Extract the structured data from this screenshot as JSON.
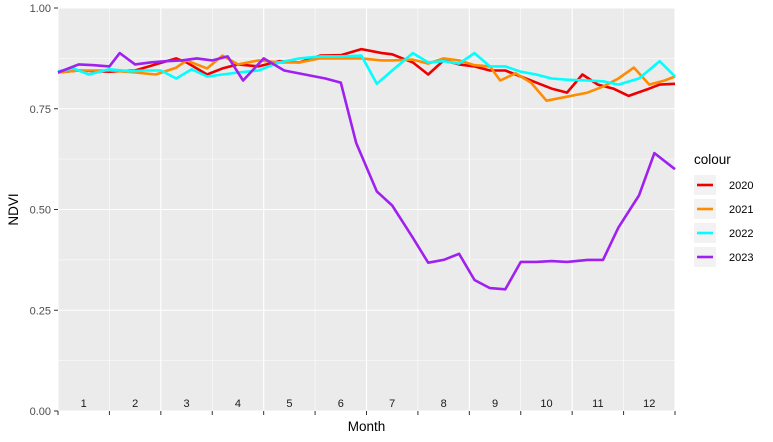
{
  "chart_data": {
    "type": "line",
    "xlabel": "Month",
    "ylabel": "NDVI",
    "ylim": [
      0,
      1
    ],
    "yticks": [
      {
        "value": 0,
        "label": "0.00"
      },
      {
        "value": 0.25,
        "label": "0.25"
      },
      {
        "value": 0.5,
        "label": "0.50"
      },
      {
        "value": 0.75,
        "label": "0.75"
      },
      {
        "value": 1,
        "label": "1.00"
      }
    ],
    "xlim": [
      0.5,
      12.5
    ],
    "month_labels": [
      "1",
      "2",
      "3",
      "4",
      "5",
      "6",
      "7",
      "8",
      "9",
      "10",
      "11",
      "12"
    ],
    "grid": true,
    "legend": {
      "title": "colour",
      "position": "right"
    },
    "series": [
      {
        "name": "2020",
        "color": "#ee0000",
        "x": [
          0.5,
          0.9,
          1.5,
          2.0,
          2.4,
          2.8,
          3.0,
          3.4,
          3.7,
          4.0,
          4.4,
          4.8,
          5.2,
          5.6,
          6.0,
          6.4,
          6.8,
          7.0,
          7.2,
          7.4,
          7.7,
          8.0,
          8.3,
          8.6,
          8.9,
          9.2,
          9.5,
          9.8,
          10.1,
          10.4,
          10.7,
          11.0,
          11.3,
          11.6,
          12.0,
          12.2,
          12.5
        ],
        "y": [
          0.84,
          0.845,
          0.842,
          0.845,
          0.86,
          0.875,
          0.865,
          0.835,
          0.85,
          0.86,
          0.855,
          0.868,
          0.865,
          0.882,
          0.883,
          0.898,
          0.888,
          0.885,
          0.875,
          0.865,
          0.835,
          0.87,
          0.86,
          0.855,
          0.845,
          0.845,
          0.83,
          0.815,
          0.8,
          0.79,
          0.835,
          0.81,
          0.8,
          0.782,
          0.8,
          0.81,
          0.812
        ]
      },
      {
        "name": "2021",
        "color": "#ff8c00",
        "x": [
          0.5,
          0.9,
          1.5,
          2.0,
          2.4,
          2.8,
          3.0,
          3.4,
          3.7,
          4.0,
          4.4,
          4.8,
          5.2,
          5.6,
          6.0,
          6.4,
          6.8,
          7.0,
          7.4,
          7.7,
          8.0,
          8.3,
          8.6,
          8.9,
          9.1,
          9.4,
          9.7,
          10.0,
          10.4,
          10.8,
          11.1,
          11.4,
          11.7,
          12.0,
          12.3,
          12.5
        ],
        "y": [
          0.84,
          0.845,
          0.845,
          0.84,
          0.835,
          0.852,
          0.87,
          0.85,
          0.882,
          0.86,
          0.87,
          0.865,
          0.865,
          0.875,
          0.875,
          0.875,
          0.87,
          0.87,
          0.872,
          0.862,
          0.875,
          0.87,
          0.858,
          0.855,
          0.82,
          0.838,
          0.815,
          0.77,
          0.78,
          0.79,
          0.805,
          0.825,
          0.852,
          0.81,
          0.82,
          0.83
        ]
      },
      {
        "name": "2022",
        "color": "#00ffff",
        "x": [
          0.5,
          0.8,
          1.1,
          1.5,
          1.9,
          2.2,
          2.5,
          2.8,
          3.1,
          3.4,
          3.7,
          4.0,
          4.4,
          4.8,
          5.2,
          5.6,
          6.0,
          6.4,
          6.7,
          7.0,
          7.4,
          7.7,
          8.0,
          8.3,
          8.6,
          8.9,
          9.2,
          9.5,
          9.8,
          10.1,
          10.4,
          10.8,
          11.1,
          11.4,
          11.8,
          12.2,
          12.5
        ],
        "y": [
          0.843,
          0.85,
          0.835,
          0.848,
          0.843,
          0.845,
          0.845,
          0.825,
          0.848,
          0.83,
          0.835,
          0.84,
          0.845,
          0.865,
          0.875,
          0.88,
          0.88,
          0.882,
          0.812,
          0.845,
          0.888,
          0.865,
          0.868,
          0.862,
          0.888,
          0.855,
          0.855,
          0.842,
          0.835,
          0.825,
          0.822,
          0.82,
          0.818,
          0.81,
          0.825,
          0.868,
          0.83
        ]
      },
      {
        "name": "2023",
        "color": "#a020f0",
        "x": [
          0.5,
          0.9,
          1.2,
          1.5,
          1.7,
          2.0,
          2.3,
          2.6,
          2.9,
          3.2,
          3.5,
          3.8,
          4.1,
          4.5,
          4.9,
          5.3,
          5.7,
          6.0,
          6.3,
          6.7,
          7.0,
          7.2,
          7.4,
          7.7,
          8.0,
          8.3,
          8.6,
          8.9,
          9.2,
          9.5,
          9.8,
          10.1,
          10.4,
          10.8,
          11.1,
          11.4,
          11.8,
          12.1,
          12.5
        ],
        "y": [
          0.84,
          0.86,
          0.858,
          0.855,
          0.888,
          0.86,
          0.865,
          0.868,
          0.87,
          0.875,
          0.87,
          0.88,
          0.82,
          0.875,
          0.845,
          0.835,
          0.825,
          0.815,
          0.665,
          0.545,
          0.51,
          0.47,
          0.43,
          0.368,
          0.375,
          0.39,
          0.325,
          0.305,
          0.302,
          0.37,
          0.37,
          0.372,
          0.37,
          0.375,
          0.375,
          0.455,
          0.535,
          0.64,
          0.6
        ]
      }
    ]
  }
}
